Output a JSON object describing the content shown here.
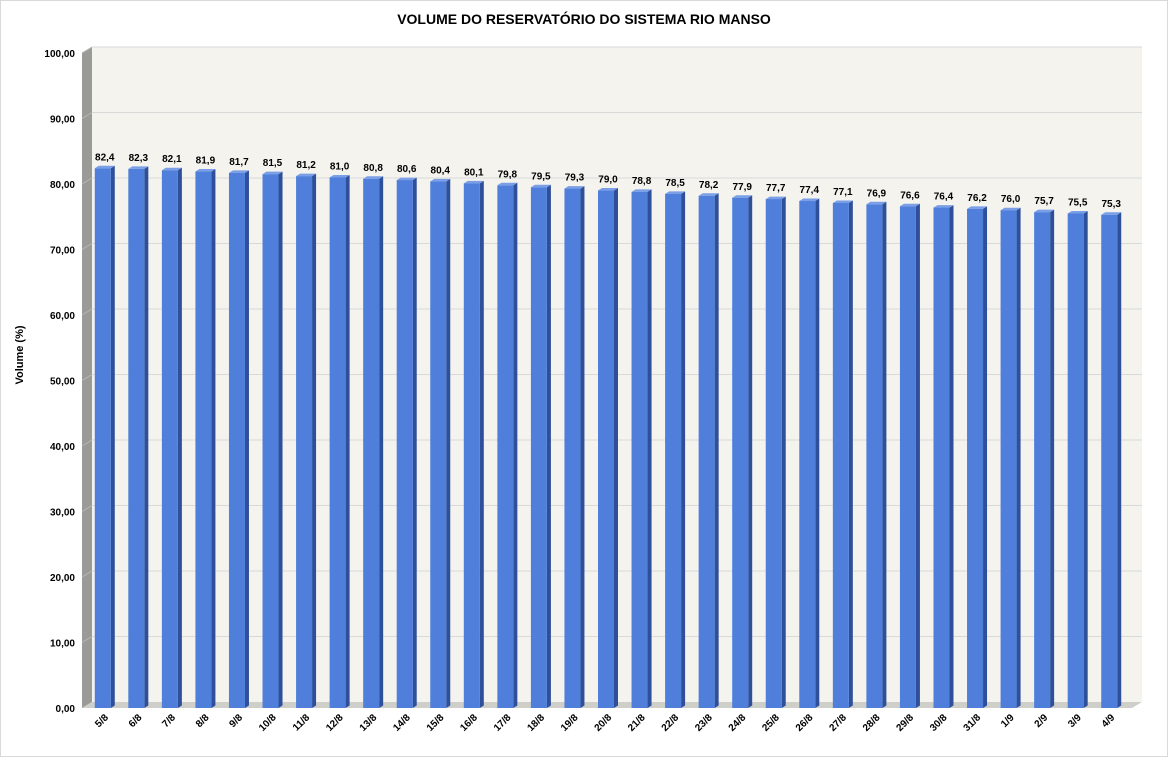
{
  "chart_data": {
    "type": "bar",
    "title": "VOLUME DO RESERVATÓRIO DO SISTEMA RIO MANSO",
    "xlabel": "",
    "ylabel": "Volume (%)",
    "ylim": [
      0,
      100
    ],
    "yticks": [
      "0,00",
      "10,00",
      "20,00",
      "30,00",
      "40,00",
      "50,00",
      "60,00",
      "70,00",
      "80,00",
      "90,00",
      "100,00"
    ],
    "grid": true,
    "legend": "none",
    "categories": [
      "5/8",
      "6/8",
      "7/8",
      "8/8",
      "9/8",
      "10/8",
      "11/8",
      "12/8",
      "13/8",
      "14/8",
      "15/8",
      "16/8",
      "17/8",
      "18/8",
      "19/8",
      "20/8",
      "21/8",
      "22/8",
      "23/8",
      "24/8",
      "25/8",
      "26/8",
      "27/8",
      "28/8",
      "29/8",
      "30/8",
      "31/8",
      "1/9",
      "2/9",
      "3/9",
      "4/9"
    ],
    "values": [
      82.4,
      82.3,
      82.1,
      81.9,
      81.7,
      81.5,
      81.2,
      81.0,
      80.8,
      80.6,
      80.4,
      80.1,
      79.8,
      79.5,
      79.3,
      79.0,
      78.8,
      78.5,
      78.2,
      77.9,
      77.7,
      77.4,
      77.1,
      76.9,
      76.6,
      76.4,
      76.2,
      76.0,
      75.7,
      75.5,
      75.3
    ],
    "data_labels": [
      "82,4",
      "82,3",
      "82,1",
      "81,9",
      "81,7",
      "81,5",
      "81,2",
      "81,0",
      "80,8",
      "80,6",
      "80,4",
      "80,1",
      "79,8",
      "79,5",
      "79,3",
      "79,0",
      "78,8",
      "78,5",
      "78,2",
      "77,9",
      "77,7",
      "77,4",
      "77,1",
      "76,9",
      "76,6",
      "76,4",
      "76,2",
      "76,0",
      "75,7",
      "75,5",
      "75,3"
    ],
    "colors": {
      "bar_front": "#4f7fdb",
      "bar_side": "#2e4f9a",
      "bar_top": "#7a9fe6",
      "wall": "#f4f3ee",
      "wall_side": "#9a9a96",
      "floor": "#cfcfca",
      "grid": "#d9d9d9"
    }
  }
}
